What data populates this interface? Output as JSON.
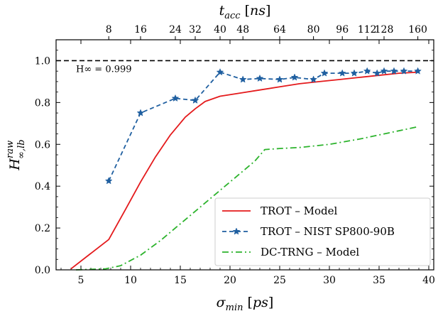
{
  "chart_data": {
    "type": "line",
    "xlabel": "σ_min [ps]",
    "ylabel": "H^raw_∞,lb",
    "top_xlabel": "t_acc [ns]",
    "xlim": [
      2.5,
      40.5
    ],
    "ylim": [
      0.0,
      1.1
    ],
    "x_ticks": [
      5,
      10,
      15,
      20,
      25,
      30,
      35,
      40
    ],
    "y_ticks": [
      0.0,
      0.2,
      0.4,
      0.6,
      0.8,
      1.0
    ],
    "top_ticks": [
      {
        "label": "8",
        "x": 7.8
      },
      {
        "label": "16",
        "x": 11.0
      },
      {
        "label": "24",
        "x": 14.5
      },
      {
        "label": "32",
        "x": 16.5
      },
      {
        "label": "40",
        "x": 19.0
      },
      {
        "label": "48",
        "x": 21.3
      },
      {
        "label": "64",
        "x": 25.0
      },
      {
        "label": "80",
        "x": 28.4
      },
      {
        "label": "96",
        "x": 31.3
      },
      {
        "label": "112",
        "x": 33.8
      },
      {
        "label": "128",
        "x": 35.5
      },
      {
        "label": "160",
        "x": 38.9
      }
    ],
    "reference_line": {
      "y": 1.0,
      "style": "dashed",
      "color": "#000000"
    },
    "annotation": {
      "text": "H∞ = 0.999",
      "x": 4.5,
      "y": 0.945
    },
    "legend": {
      "position": "bottom-right"
    },
    "series": [
      {
        "name": "TROT – Model",
        "color": "#e41a1c",
        "style": "solid",
        "marker": "none",
        "x": [
          4.0,
          7.8,
          9.5,
          11.0,
          12.5,
          14.0,
          15.5,
          16.5,
          17.5,
          19.0,
          21.0,
          23.0,
          25.0,
          27.0,
          29.0,
          31.0,
          33.0,
          35.0,
          37.0,
          39.0
        ],
        "y": [
          0.005,
          0.145,
          0.29,
          0.42,
          0.54,
          0.645,
          0.73,
          0.77,
          0.805,
          0.83,
          0.845,
          0.86,
          0.875,
          0.89,
          0.9,
          0.91,
          0.92,
          0.93,
          0.94,
          0.945
        ]
      },
      {
        "name": "TROT – NIST SP800-90B",
        "color": "#1f5fa0",
        "style": "dashed",
        "marker": "star",
        "x": [
          7.8,
          11.0,
          14.5,
          16.5,
          19.0,
          21.3,
          23.0,
          25.0,
          26.5,
          28.4,
          29.5,
          31.3,
          32.5,
          33.8,
          34.8,
          35.5,
          36.5,
          37.5,
          38.9
        ],
        "y": [
          0.425,
          0.75,
          0.82,
          0.81,
          0.945,
          0.91,
          0.915,
          0.91,
          0.92,
          0.91,
          0.94,
          0.94,
          0.94,
          0.95,
          0.94,
          0.95,
          0.95,
          0.95,
          0.95
        ]
      },
      {
        "name": "DC-TRNG – Model",
        "color": "#2cb32c",
        "style": "dashdot",
        "marker": "none",
        "x": [
          4.5,
          7.5,
          9.0,
          11.0,
          13.0,
          15.0,
          17.0,
          19.0,
          21.0,
          22.5,
          23.5,
          25.0,
          27.0,
          30.0,
          33.0,
          36.0,
          39.0
        ],
        "y": [
          0.0,
          0.005,
          0.02,
          0.07,
          0.14,
          0.22,
          0.3,
          0.38,
          0.46,
          0.52,
          0.575,
          0.58,
          0.585,
          0.6,
          0.625,
          0.655,
          0.685
        ]
      }
    ]
  }
}
